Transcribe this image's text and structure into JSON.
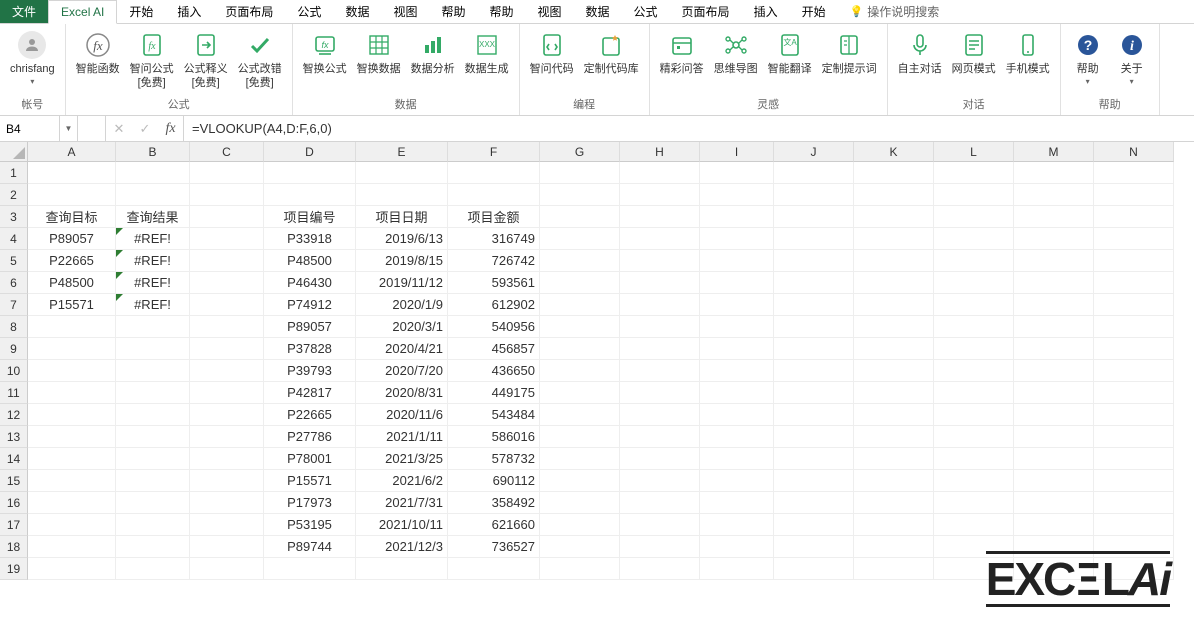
{
  "menu": {
    "file": "文件",
    "active": "Excel AI",
    "items": [
      "开始",
      "插入",
      "页面布局",
      "公式",
      "数据",
      "视图",
      "帮助"
    ],
    "search": "操作说明搜索"
  },
  "ribbon": {
    "account": {
      "label": "chrisfang",
      "group": "帐号"
    },
    "groups": [
      {
        "name": "公式",
        "buttons": [
          {
            "id": "smart-fn",
            "label": "智能函数",
            "icon": "fx"
          },
          {
            "id": "ask-formula",
            "label": "智问公式\n[免费]",
            "icon": "fx-doc"
          },
          {
            "id": "explain-formula",
            "label": "公式释义\n[免费]",
            "icon": "doc-arrow"
          },
          {
            "id": "fix-formula",
            "label": "公式改错\n[免费]",
            "icon": "check"
          }
        ]
      },
      {
        "name": "数据",
        "buttons": [
          {
            "id": "swap-formula",
            "label": "智换公式",
            "icon": "fx-swap"
          },
          {
            "id": "swap-data",
            "label": "智换数据",
            "icon": "grid"
          },
          {
            "id": "analyze",
            "label": "数据分析",
            "icon": "bars"
          },
          {
            "id": "generate",
            "label": "数据生成",
            "icon": "grid-x"
          }
        ]
      },
      {
        "name": "编程",
        "buttons": [
          {
            "id": "ask-code",
            "label": "智问代码",
            "icon": "code-doc"
          },
          {
            "id": "custom-lib",
            "label": "定制代码库",
            "icon": "code-star"
          }
        ]
      },
      {
        "name": "灵感",
        "buttons": [
          {
            "id": "qa",
            "label": "精彩问答",
            "icon": "calendar"
          },
          {
            "id": "mindmap",
            "label": "思维导图",
            "icon": "mind"
          },
          {
            "id": "translate",
            "label": "智能翻译",
            "icon": "globe"
          },
          {
            "id": "prompt",
            "label": "定制提示词",
            "icon": "book"
          }
        ]
      },
      {
        "name": "对话",
        "buttons": [
          {
            "id": "auto-chat",
            "label": "自主对话",
            "icon": "mic"
          },
          {
            "id": "web-mode",
            "label": "网页模式",
            "icon": "webdoc"
          },
          {
            "id": "mobile-mode",
            "label": "手机模式",
            "icon": "phone"
          }
        ]
      },
      {
        "name": "帮助",
        "buttons": [
          {
            "id": "help",
            "label": "帮助",
            "icon": "help"
          },
          {
            "id": "about",
            "label": "关于",
            "icon": "info"
          }
        ]
      }
    ]
  },
  "formula_bar": {
    "cell_ref": "B4",
    "formula": "=VLOOKUP(A4,D:F,6,0)"
  },
  "grid": {
    "col_widths": {
      "A": 88,
      "B": 74,
      "C": 74,
      "D": 92,
      "E": 92,
      "F": 92,
      "G": 80,
      "H": 80,
      "I": 74,
      "J": 80,
      "K": 80,
      "L": 80,
      "M": 80,
      "N": 80
    },
    "columns": [
      "A",
      "B",
      "C",
      "D",
      "E",
      "F",
      "G",
      "H",
      "I",
      "J",
      "K",
      "L",
      "M",
      "N"
    ],
    "row_count": 19,
    "headers_row": 3,
    "headers": {
      "A": "查询目标",
      "B": "查询结果",
      "D": "项目编号",
      "E": "项目日期",
      "F": "项目金额"
    },
    "query": [
      {
        "row": 4,
        "target": "P89057",
        "result": "#REF!"
      },
      {
        "row": 5,
        "target": "P22665",
        "result": "#REF!"
      },
      {
        "row": 6,
        "target": "P48500",
        "result": "#REF!"
      },
      {
        "row": 7,
        "target": "P15571",
        "result": "#REF!"
      }
    ],
    "data": [
      {
        "row": 4,
        "id": "P33918",
        "date": "2019/6/13",
        "amount": "316749"
      },
      {
        "row": 5,
        "id": "P48500",
        "date": "2019/8/15",
        "amount": "726742"
      },
      {
        "row": 6,
        "id": "P46430",
        "date": "2019/11/12",
        "amount": "593561"
      },
      {
        "row": 7,
        "id": "P74912",
        "date": "2020/1/9",
        "amount": "612902"
      },
      {
        "row": 8,
        "id": "P89057",
        "date": "2020/3/1",
        "amount": "540956"
      },
      {
        "row": 9,
        "id": "P37828",
        "date": "2020/4/21",
        "amount": "456857"
      },
      {
        "row": 10,
        "id": "P39793",
        "date": "2020/7/20",
        "amount": "436650"
      },
      {
        "row": 11,
        "id": "P42817",
        "date": "2020/8/31",
        "amount": "449175"
      },
      {
        "row": 12,
        "id": "P22665",
        "date": "2020/11/6",
        "amount": "543484"
      },
      {
        "row": 13,
        "id": "P27786",
        "date": "2021/1/11",
        "amount": "586016"
      },
      {
        "row": 14,
        "id": "P78001",
        "date": "2021/3/25",
        "amount": "578732"
      },
      {
        "row": 15,
        "id": "P15571",
        "date": "2021/6/2",
        "amount": "690112"
      },
      {
        "row": 16,
        "id": "P17973",
        "date": "2021/7/31",
        "amount": "358492"
      },
      {
        "row": 17,
        "id": "P53195",
        "date": "2021/10/11",
        "amount": "621660"
      },
      {
        "row": 18,
        "id": "P89744",
        "date": "2021/12/3",
        "amount": "736527"
      }
    ]
  },
  "watermark": {
    "text1": "EXC",
    "text2": "L",
    "text3": "Ai",
    "sep": "☰"
  },
  "colors": {
    "excel_green": "#217346",
    "grid_border": "#eeeeee",
    "header_bg": "#f0f0f0",
    "error_tri": "#2e7d32"
  }
}
